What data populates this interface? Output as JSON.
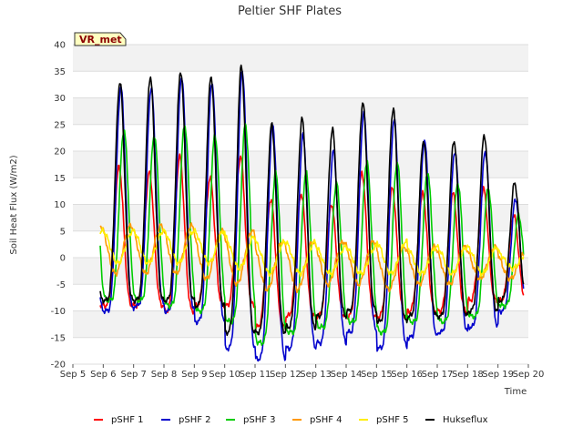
{
  "chart_data": {
    "type": "line",
    "title": "Peltier SHF Plates",
    "xlabel": "Time",
    "ylabel": "Soil Heat Flux (W/m2)",
    "badge": "VR_met",
    "x_ticks": [
      "Sep 5",
      "Sep 6",
      "Sep 7",
      "Sep 8",
      "Sep 9",
      "Sep 10",
      "Sep 11",
      "Sep 12",
      "Sep 13",
      "Sep 14",
      "Sep 15",
      "Sep 16",
      "Sep 17",
      "Sep 18",
      "Sep 19",
      "Sep 20"
    ],
    "xlim": [
      5,
      20
    ],
    "ylim": [
      -20,
      40
    ],
    "y_ticks": [
      -20,
      -15,
      -10,
      -5,
      0,
      5,
      10,
      15,
      20,
      25,
      30,
      35,
      40
    ],
    "days": [
      6,
      7,
      8,
      9,
      10,
      11,
      12,
      13,
      14,
      15,
      16,
      17,
      18,
      19
    ],
    "grid": true,
    "legend_position": "bottom",
    "series": [
      {
        "name": "pSHF 1",
        "color": "#ff0000",
        "peak_phase": 0.52,
        "peaks": [
          17,
          16,
          19,
          15,
          19,
          11,
          12,
          10,
          16,
          13,
          12,
          12,
          13,
          8
        ],
        "troughs": [
          -9,
          -9,
          -10,
          -9,
          -9,
          -13,
          -11,
          -11,
          -11,
          -11,
          -10,
          -10,
          -8,
          -8
        ]
      },
      {
        "name": "pSHF 2",
        "color": "#0000cc",
        "peak_phase": 0.58,
        "peaks": [
          32,
          32,
          34,
          33,
          35,
          25,
          23,
          20,
          27,
          26,
          22,
          20,
          20,
          11
        ],
        "troughs": [
          -10,
          -9,
          -10,
          -12,
          -17,
          -19,
          -17,
          -16,
          -14,
          -17,
          -15,
          -14,
          -13,
          -10
        ]
      },
      {
        "name": "pSHF 3",
        "color": "#00cc00",
        "peak_phase": 0.68,
        "peaks": [
          24,
          23,
          25,
          23,
          25,
          16,
          16,
          14,
          18,
          18,
          16,
          14,
          13,
          8
        ],
        "troughs": [
          -8,
          -8,
          -9,
          -10,
          -12,
          -16,
          -14,
          -13,
          -12,
          -14,
          -12,
          -12,
          -11,
          -9
        ]
      },
      {
        "name": "pSHF 4",
        "color": "#ff9900",
        "peak_phase": 0.9,
        "peaks": [
          6,
          6,
          6,
          5,
          5,
          3,
          3,
          3,
          3,
          2,
          2,
          2,
          2,
          1
        ],
        "troughs": [
          -3,
          -3,
          -3,
          -4,
          -5,
          -6,
          -6,
          -5,
          -5,
          -6,
          -5,
          -5,
          -4,
          -4
        ]
      },
      {
        "name": "pSHF 5",
        "color": "#ffee00",
        "peak_phase": 0.98,
        "peaks": [
          5,
          5,
          5,
          5,
          4,
          3,
          3,
          2,
          2,
          3,
          2,
          2,
          2,
          1
        ],
        "troughs": [
          -1,
          -1,
          -1,
          -1,
          -2,
          -3,
          -3,
          -3,
          -3,
          -3,
          -3,
          -3,
          -3,
          -2
        ]
      },
      {
        "name": "Hukseflux",
        "color": "#000000",
        "peak_phase": 0.55,
        "peaks": [
          33,
          34,
          35,
          34,
          36,
          25,
          26,
          24,
          29,
          28,
          22,
          22,
          23,
          14
        ],
        "troughs": [
          -8,
          -8,
          -8,
          -9,
          -14,
          -14,
          -13,
          -11,
          -10,
          -12,
          -11,
          -11,
          -10,
          -8
        ]
      }
    ]
  }
}
